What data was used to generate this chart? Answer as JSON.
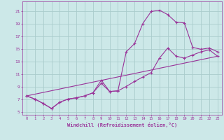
{
  "title": "",
  "xlabel": "Windchill (Refroidissement éolien,°C)",
  "ylabel": "",
  "bg_color": "#cce8e8",
  "grid_color": "#aacccc",
  "line_color": "#993399",
  "xlim": [
    -0.5,
    23.5
  ],
  "ylim": [
    4.5,
    22.5
  ],
  "xticks": [
    0,
    1,
    2,
    3,
    4,
    5,
    6,
    7,
    8,
    9,
    10,
    11,
    12,
    13,
    14,
    15,
    16,
    17,
    18,
    19,
    20,
    21,
    22,
    23
  ],
  "yticks": [
    5,
    7,
    9,
    11,
    13,
    15,
    17,
    19,
    21
  ],
  "curve1_x": [
    0,
    1,
    2,
    3,
    4,
    5,
    6,
    7,
    8,
    9,
    10,
    11,
    12,
    13,
    14,
    15,
    16,
    17,
    18,
    19,
    20,
    21,
    22,
    23
  ],
  "curve1_y": [
    7.5,
    7.0,
    6.3,
    5.5,
    6.5,
    7.0,
    7.2,
    7.5,
    8.0,
    10.0,
    8.2,
    8.3,
    14.5,
    15.8,
    19.0,
    20.9,
    21.1,
    20.4,
    19.2,
    19.1,
    15.2,
    14.9,
    15.1,
    14.5
  ],
  "curve2_x": [
    0,
    1,
    2,
    3,
    4,
    5,
    6,
    7,
    8,
    9,
    10,
    11,
    12,
    13,
    14,
    15,
    16,
    17,
    18,
    19,
    20,
    21,
    22,
    23
  ],
  "curve2_y": [
    7.5,
    7.0,
    6.3,
    5.5,
    6.5,
    7.0,
    7.2,
    7.5,
    8.0,
    9.5,
    8.2,
    8.3,
    9.0,
    9.8,
    10.5,
    11.2,
    13.5,
    15.1,
    13.8,
    13.5,
    14.0,
    14.5,
    14.8,
    13.8
  ],
  "curve3_x": [
    0,
    23
  ],
  "curve3_y": [
    7.5,
    13.8
  ]
}
